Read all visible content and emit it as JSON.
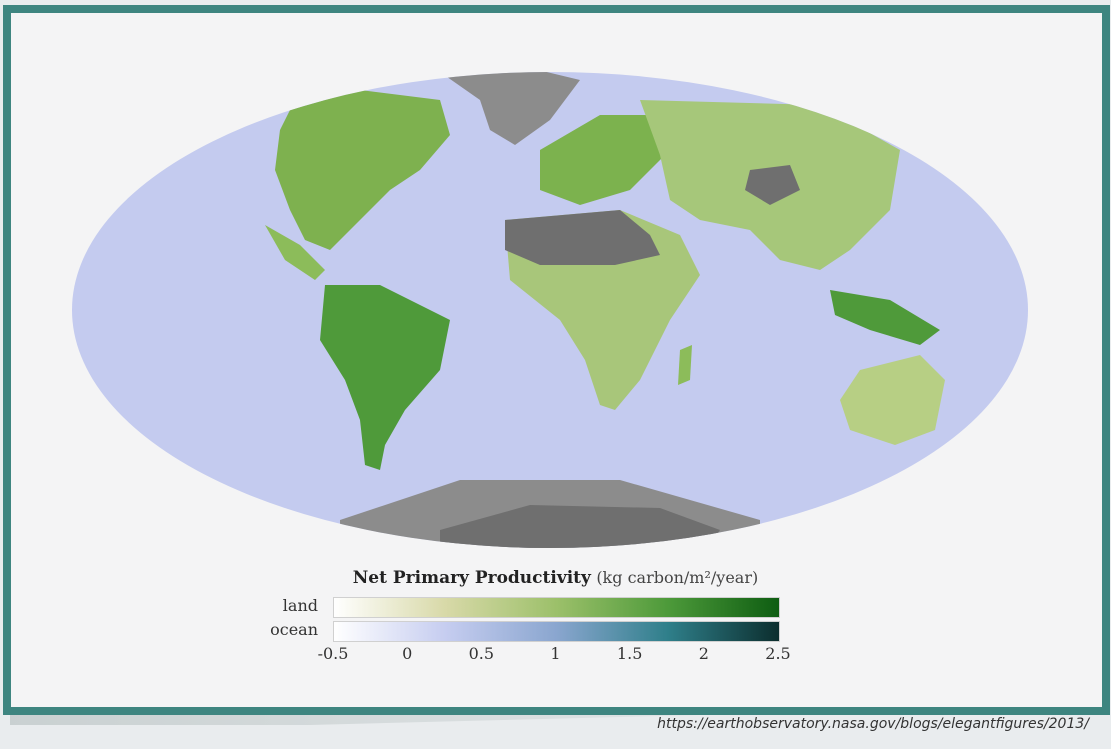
{
  "legend": {
    "title": "Net Primary Productivity",
    "unit": "(kg carbon/m²/year)",
    "land_label": "land",
    "ocean_label": "ocean",
    "ticks": [
      "-0.5",
      "0",
      "0.5",
      "1",
      "1.5",
      "2",
      "2.5"
    ],
    "tick_values": [
      -0.5,
      0,
      0.5,
      1,
      1.5,
      2,
      2.5
    ],
    "range": [
      -0.5,
      2.5
    ],
    "land_colors": [
      "#ffffff",
      "#d8d9a8",
      "#9cc06a",
      "#4d9a3a",
      "#0e5d12"
    ],
    "ocean_colors": [
      "#ffffff",
      "#c6cdf0",
      "#8aa6cf",
      "#2f7f8a",
      "#0c2e2e"
    ]
  },
  "map": {
    "ocean_color": "#c4cbef",
    "ice_color": "#8c8c8c",
    "desert_color": "#6f6f6f",
    "land_low_color": "#d9dca4",
    "land_high_color": "#3f8f2f"
  },
  "source": {
    "url": "https://earthobservatory.nasa.gov/blogs/elegantfigures/2013/"
  },
  "frame": {
    "border_color": "#3e8580"
  }
}
